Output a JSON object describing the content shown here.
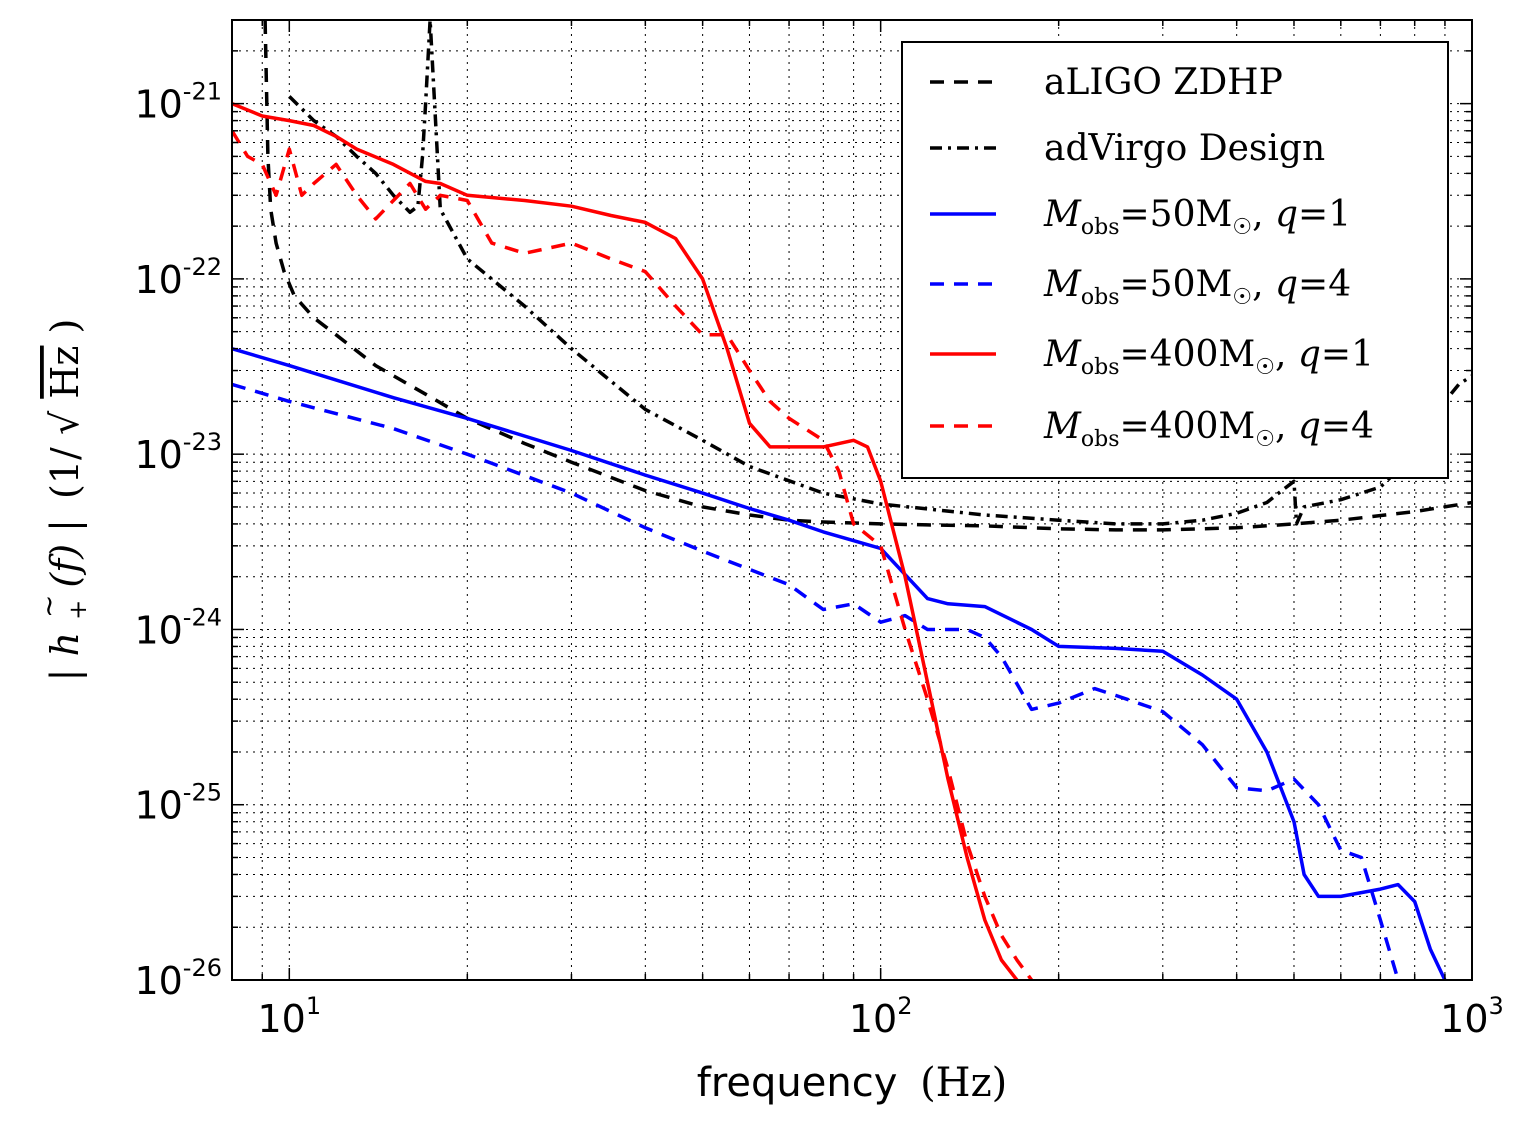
{
  "chart_data": {
    "type": "line",
    "xscale": "log",
    "yscale": "log",
    "xlim": [
      8,
      1000
    ],
    "ylim": [
      1e-26,
      3e-21
    ],
    "xlabel": "frequency",
    "xlabel_unit": "(Hz)",
    "ylabel": "|h̃₊(f)| (1/√Hz)",
    "x_ticks": [
      {
        "base": "10",
        "exp": "1"
      },
      {
        "base": "10",
        "exp": "2"
      },
      {
        "base": "10",
        "exp": "3"
      }
    ],
    "y_ticks": [
      {
        "base": "10",
        "exp": "-21"
      },
      {
        "base": "10",
        "exp": "-22"
      },
      {
        "base": "10",
        "exp": "-23"
      },
      {
        "base": "10",
        "exp": "-24"
      },
      {
        "base": "10",
        "exp": "-25"
      },
      {
        "base": "10",
        "exp": "-26"
      }
    ],
    "grid": true,
    "legend_position": "top-right",
    "series": [
      {
        "name": "aLIGO ZDHP",
        "color": "#000000",
        "style": "dashed",
        "x": [
          9.1,
          9.2,
          9.3,
          9.5,
          9.8,
          10.2,
          11,
          12,
          14,
          17,
          20,
          25,
          30,
          40,
          50,
          60,
          70,
          80,
          100,
          120,
          150,
          200,
          250,
          300,
          400,
          500,
          600,
          800,
          1000
        ],
        "y": [
          3e-21,
          5e-22,
          2.5e-22,
          1.6e-22,
          1.1e-22,
          8e-23,
          6e-23,
          4.8e-23,
          3.2e-23,
          2.2e-23,
          1.6e-23,
          1.15e-23,
          9e-24,
          6.2e-24,
          5e-24,
          4.5e-24,
          4.2e-24,
          4.1e-24,
          4e-24,
          3.95e-24,
          3.9e-24,
          3.75e-24,
          3.7e-24,
          3.7e-24,
          3.8e-24,
          4e-24,
          4.2e-24,
          4.7e-24,
          5.3e-24
        ]
      },
      {
        "name": "adVirgo Design",
        "color": "#000000",
        "style": "dashdot",
        "x": [
          10,
          11,
          12,
          13,
          14,
          15,
          16,
          16.5,
          16.8,
          17,
          17.3,
          18,
          20,
          25,
          30,
          40,
          50,
          60,
          80,
          100,
          150,
          200,
          250,
          300,
          350,
          400,
          450,
          480,
          500,
          505,
          520,
          600,
          700,
          800,
          900,
          950,
          1000
        ],
        "y": [
          1.1e-21,
          8e-22,
          6.5e-22,
          5e-22,
          4e-22,
          3e-22,
          2.4e-22,
          2.6e-22,
          5e-22,
          1e-21,
          3e-21,
          2.5e-22,
          1.3e-22,
          7e-23,
          4e-23,
          1.8e-23,
          1.2e-23,
          8.5e-24,
          6e-24,
          5.2e-24,
          4.5e-24,
          4.2e-24,
          4e-24,
          4e-24,
          4.2e-24,
          4.6e-24,
          5.3e-24,
          6.3e-24,
          7e-24,
          4e-24,
          5e-24,
          5.5e-24,
          6.5e-24,
          1e-23,
          2e-23,
          2.5e-23,
          2.8e-23
        ]
      },
      {
        "name": "M_obs = 50M☉, q = 1",
        "color": "#0000ff",
        "style": "solid",
        "x": [
          8,
          10,
          15,
          20,
          30,
          40,
          50,
          60,
          70,
          80,
          100,
          120,
          130,
          150,
          180,
          200,
          250,
          300,
          350,
          400,
          450,
          500,
          520,
          550,
          600,
          700,
          750,
          800,
          850,
          900
        ],
        "y": [
          4e-23,
          3.2e-23,
          2.1e-23,
          1.6e-23,
          1.05e-23,
          7.6e-24,
          6e-24,
          4.9e-24,
          4.2e-24,
          3.6e-24,
          2.9e-24,
          1.5e-24,
          1.4e-24,
          1.35e-24,
          1e-24,
          8e-25,
          7.8e-25,
          7.5e-25,
          5.5e-25,
          4e-25,
          2e-25,
          8e-26,
          4e-26,
          3e-26,
          3e-26,
          3.3e-26,
          3.5e-26,
          2.8e-26,
          1.5e-26,
          1e-26
        ]
      },
      {
        "name": "M_obs = 50M☉, q = 4",
        "color": "#0000ff",
        "style": "dashed",
        "x": [
          8,
          10,
          15,
          20,
          30,
          40,
          50,
          60,
          70,
          80,
          90,
          100,
          110,
          120,
          140,
          150,
          160,
          180,
          200,
          230,
          250,
          300,
          350,
          400,
          450,
          500,
          550,
          600,
          650,
          700,
          750
        ],
        "y": [
          2.5e-23,
          2e-23,
          1.4e-23,
          1e-23,
          6e-24,
          3.8e-24,
          2.8e-24,
          2.2e-24,
          1.8e-24,
          1.3e-24,
          1.4e-24,
          1.1e-24,
          1.2e-24,
          1e-24,
          1e-24,
          9e-25,
          7e-25,
          3.5e-25,
          3.8e-25,
          4.6e-25,
          4.2e-25,
          3.4e-25,
          2.2e-25,
          1.25e-25,
          1.2e-25,
          1.4e-25,
          1e-25,
          5.5e-26,
          5e-26,
          2.2e-26,
          1e-26
        ]
      },
      {
        "name": "M_obs = 400M☉, q = 1",
        "color": "#ff0000",
        "style": "solid",
        "x": [
          8,
          9,
          10,
          11,
          12,
          13,
          15,
          17,
          18,
          20,
          25,
          30,
          35,
          40,
          45,
          50,
          55,
          60,
          65,
          70,
          80,
          90,
          95,
          100,
          110,
          120,
          130,
          140,
          150,
          160,
          170
        ],
        "y": [
          1e-21,
          8.5e-22,
          8e-22,
          7.5e-22,
          6.5e-22,
          5.5e-22,
          4.5e-22,
          3.6e-22,
          3.5e-22,
          3e-22,
          2.8e-22,
          2.6e-22,
          2.3e-22,
          2.1e-22,
          1.7e-22,
          1e-22,
          4e-23,
          1.5e-23,
          1.1e-23,
          1.1e-23,
          1.1e-23,
          1.2e-23,
          1.1e-23,
          7e-24,
          2e-24,
          5e-25,
          1.4e-25,
          5e-26,
          2.2e-26,
          1.3e-26,
          1e-26
        ]
      },
      {
        "name": "M_obs = 400M☉, q = 4",
        "color": "#ff0000",
        "style": "dashed",
        "x": [
          8,
          8.5,
          9,
          9.5,
          10,
          10.5,
          11,
          12,
          13,
          14,
          15,
          16,
          17,
          18,
          20,
          22,
          25,
          30,
          35,
          40,
          45,
          50,
          55,
          60,
          65,
          70,
          80,
          85,
          90,
          100,
          110,
          120,
          130,
          140,
          150,
          160,
          170,
          180
        ],
        "y": [
          7e-22,
          5e-22,
          4.5e-22,
          3e-22,
          5.5e-22,
          3e-22,
          3.5e-22,
          4.5e-22,
          3e-22,
          2.2e-22,
          2.8e-22,
          3.5e-22,
          2.5e-22,
          3e-22,
          2.8e-22,
          1.6e-22,
          1.4e-22,
          1.6e-22,
          1.3e-22,
          1.1e-22,
          7e-23,
          4.8e-23,
          4.8e-23,
          3e-23,
          2e-23,
          1.6e-23,
          1.2e-23,
          8e-24,
          4e-24,
          3e-24,
          1e-24,
          4e-25,
          1.6e-25,
          6e-26,
          3e-26,
          1.8e-26,
          1.3e-26,
          1e-26
        ]
      }
    ]
  },
  "legend": {
    "items": [
      {
        "label_main": "aLIGO ZDHP",
        "math": false
      },
      {
        "label_main": "adVirgo Design",
        "math": false
      },
      {
        "sym": "M",
        "sub": "obs",
        "eq": "=",
        "mass": "50M",
        "sun": "☉",
        "sep": ", ",
        "qsym": "q",
        "qeq": "=",
        "qval": "1",
        "math": true
      },
      {
        "sym": "M",
        "sub": "obs",
        "eq": "=",
        "mass": "50M",
        "sun": "☉",
        "sep": ", ",
        "qsym": "q",
        "qeq": "=",
        "qval": "4",
        "math": true
      },
      {
        "sym": "M",
        "sub": "obs",
        "eq": "=",
        "mass": "400M",
        "sun": "☉",
        "sep": ", ",
        "qsym": "q",
        "qeq": "=",
        "qval": "1",
        "math": true
      },
      {
        "sym": "M",
        "sub": "obs",
        "eq": "=",
        "mass": "400M",
        "sun": "☉",
        "sep": ", ",
        "qsym": "q",
        "qeq": "=",
        "qval": "4",
        "math": true
      }
    ]
  },
  "ylabel_parts": {
    "abs_open": "|",
    "h": "h",
    "tilde": "~",
    "sub": "+",
    "arg": "(f)",
    "abs_close": "|",
    "unit_open": "(1/",
    "sqrt": "√",
    "unit_inner": "Hz",
    "unit_close": ")"
  }
}
